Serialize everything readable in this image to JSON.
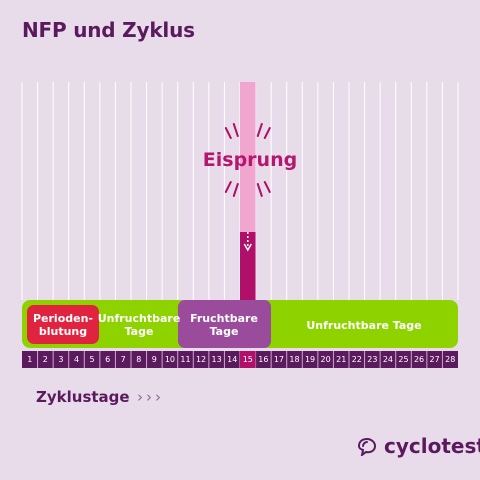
{
  "title": "NFP und Zyklus",
  "phases": {
    "period": "Perioden-\nblutung",
    "infertile_before": "Unfruchtbare\nTage",
    "fertile": "Fruchtbare\nTage",
    "infertile_after": "Unfruchtbare Tage"
  },
  "ovulation_label": "Eisprung",
  "ovulation_day": 15,
  "days": [
    "1",
    "2",
    "3",
    "4",
    "5",
    "6",
    "7",
    "8",
    "9",
    "10",
    "11",
    "12",
    "13",
    "14",
    "15",
    "16",
    "17",
    "18",
    "19",
    "20",
    "21",
    "22",
    "23",
    "24",
    "25",
    "26",
    "27",
    "28"
  ],
  "axis_label": "Zyklustage",
  "chevrons": "›››",
  "brand": "cyclotest",
  "colors": {
    "background": "#e8dcea",
    "period": "#e0243f",
    "infertile": "#8ed300",
    "fertile": "#9b4b9c",
    "ovulation": "#b0106a",
    "ovulation_light": "#f0a6cf",
    "day_bar": "#5b1a5e"
  }
}
